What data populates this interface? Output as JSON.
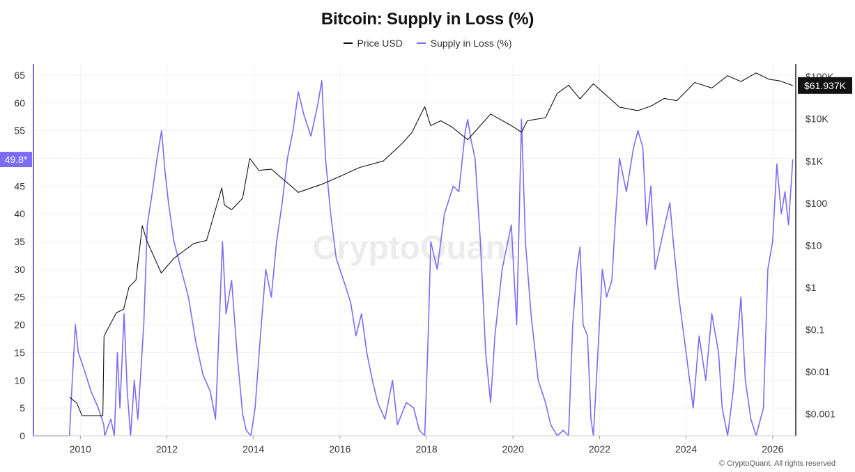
{
  "chart_data": {
    "type": "line",
    "title": "Bitcoin: Supply in Loss (%)",
    "legend_position": "top-center",
    "grid": true,
    "x_axis": {
      "type": "date",
      "range": [
        "2008-12-01",
        "2026-07-15"
      ],
      "tick_labels": [
        "2010",
        "2012",
        "2014",
        "2016",
        "2018",
        "2020",
        "2022",
        "2024",
        "2026"
      ]
    },
    "y_axis_left": {
      "range": [
        0,
        67
      ],
      "tick_labels": [
        "0",
        "5",
        "10",
        "15",
        "20",
        "25",
        "30",
        "35",
        "40",
        "45",
        "50",
        "55",
        "60",
        "65"
      ],
      "current_value_badge": "49.8*"
    },
    "y_axis_right": {
      "scale": "log",
      "range": [
        0.0003,
        200000
      ],
      "ticks": [
        0.001,
        0.01,
        0.1,
        1,
        10,
        100,
        1000,
        10000,
        100000
      ],
      "tick_labels": [
        "$0.001",
        "$0.01",
        "$0.1",
        "$1",
        "$10",
        "$100",
        "$1K",
        "$10K",
        "$100K"
      ],
      "current_value_badge": "$61.937K"
    },
    "series": [
      {
        "name": "Price USD",
        "color": "#111111",
        "axis": "right",
        "points": [
          [
            "2009-10-01",
            0.0025
          ],
          [
            "2009-12-01",
            0.0018
          ],
          [
            "2010-01-15",
            0.0009
          ],
          [
            "2010-07-10",
            0.0009
          ],
          [
            "2010-07-20",
            0.07
          ],
          [
            "2010-11-01",
            0.25
          ],
          [
            "2011-01-01",
            0.3
          ],
          [
            "2011-02-15",
            1.0
          ],
          [
            "2011-04-15",
            1.5
          ],
          [
            "2011-06-08",
            29
          ],
          [
            "2011-07-15",
            13
          ],
          [
            "2011-11-15",
            2.2
          ],
          [
            "2012-03-01",
            4.9
          ],
          [
            "2012-08-15",
            11
          ],
          [
            "2012-12-01",
            13
          ],
          [
            "2013-04-09",
            230
          ],
          [
            "2013-05-01",
            90
          ],
          [
            "2013-07-01",
            70
          ],
          [
            "2013-10-01",
            130
          ],
          [
            "2013-12-01",
            1150
          ],
          [
            "2014-02-15",
            600
          ],
          [
            "2014-06-01",
            640
          ],
          [
            "2015-01-15",
            180
          ],
          [
            "2015-08-01",
            280
          ],
          [
            "2016-01-01",
            430
          ],
          [
            "2016-06-15",
            700
          ],
          [
            "2017-01-01",
            1000
          ],
          [
            "2017-06-15",
            2700
          ],
          [
            "2017-09-01",
            4800
          ],
          [
            "2017-12-17",
            19500
          ],
          [
            "2018-02-05",
            6900
          ],
          [
            "2018-05-01",
            9000
          ],
          [
            "2018-08-01",
            6500
          ],
          [
            "2018-12-15",
            3200
          ],
          [
            "2019-06-26",
            13000
          ],
          [
            "2019-12-15",
            7000
          ],
          [
            "2020-03-13",
            4800
          ],
          [
            "2020-05-01",
            9000
          ],
          [
            "2020-10-01",
            10700
          ],
          [
            "2021-01-08",
            40000
          ],
          [
            "2021-04-14",
            63000
          ],
          [
            "2021-07-20",
            29800
          ],
          [
            "2021-11-10",
            68000
          ],
          [
            "2022-06-18",
            19000
          ],
          [
            "2022-11-21",
            15700
          ],
          [
            "2023-03-10",
            20000
          ],
          [
            "2023-07-01",
            30500
          ],
          [
            "2023-10-15",
            27000
          ],
          [
            "2024-03-14",
            73000
          ],
          [
            "2024-08-05",
            54000
          ],
          [
            "2024-12-17",
            106000
          ],
          [
            "2025-04-08",
            77000
          ],
          [
            "2025-08-14",
            123000
          ],
          [
            "2025-12-01",
            87000
          ],
          [
            "2026-03-01",
            80000
          ],
          [
            "2026-06-20",
            61937
          ]
        ]
      },
      {
        "name": "Supply in Loss (%)",
        "color": "#7b6cf2",
        "axis": "left",
        "points": [
          [
            "2008-12-01",
            0
          ],
          [
            "2009-10-01",
            0
          ],
          [
            "2009-10-20",
            8
          ],
          [
            "2009-11-20",
            20
          ],
          [
            "2009-12-15",
            15
          ],
          [
            "2010-02-01",
            12
          ],
          [
            "2010-04-01",
            8
          ],
          [
            "2010-06-01",
            5
          ],
          [
            "2010-07-18",
            2
          ],
          [
            "2010-07-25",
            0
          ],
          [
            "2010-09-15",
            3
          ],
          [
            "2010-10-15",
            0
          ],
          [
            "2010-11-10",
            15
          ],
          [
            "2010-12-01",
            5
          ],
          [
            "2011-01-05",
            22
          ],
          [
            "2011-02-01",
            8
          ],
          [
            "2011-03-01",
            0
          ],
          [
            "2011-04-01",
            10
          ],
          [
            "2011-05-01",
            3
          ],
          [
            "2011-06-20",
            20
          ],
          [
            "2011-07-20",
            38
          ],
          [
            "2011-09-01",
            44
          ],
          [
            "2011-10-10",
            50
          ],
          [
            "2011-11-18",
            55
          ],
          [
            "2011-12-15",
            48
          ],
          [
            "2012-01-15",
            42
          ],
          [
            "2012-03-01",
            35
          ],
          [
            "2012-05-01",
            30
          ],
          [
            "2012-07-01",
            25
          ],
          [
            "2012-09-01",
            17
          ],
          [
            "2012-11-01",
            11
          ],
          [
            "2013-01-01",
            8
          ],
          [
            "2013-02-15",
            3
          ],
          [
            "2013-04-15",
            35
          ],
          [
            "2013-05-15",
            22
          ],
          [
            "2013-07-01",
            28
          ],
          [
            "2013-08-15",
            15
          ],
          [
            "2013-10-01",
            4
          ],
          [
            "2013-11-01",
            1
          ],
          [
            "2013-12-10",
            0
          ],
          [
            "2014-01-15",
            5
          ],
          [
            "2014-03-01",
            18
          ],
          [
            "2014-04-15",
            30
          ],
          [
            "2014-06-01",
            25
          ],
          [
            "2014-07-15",
            35
          ],
          [
            "2014-09-01",
            42
          ],
          [
            "2014-10-15",
            50
          ],
          [
            "2014-12-01",
            55
          ],
          [
            "2015-01-15",
            62
          ],
          [
            "2015-03-01",
            58
          ],
          [
            "2015-05-01",
            54
          ],
          [
            "2015-07-01",
            60
          ],
          [
            "2015-08-01",
            64
          ],
          [
            "2015-09-01",
            50
          ],
          [
            "2015-10-15",
            40
          ],
          [
            "2015-12-01",
            32
          ],
          [
            "2016-02-01",
            28
          ],
          [
            "2016-04-01",
            24
          ],
          [
            "2016-05-15",
            18
          ],
          [
            "2016-07-01",
            22
          ],
          [
            "2016-08-15",
            15
          ],
          [
            "2016-10-01",
            10
          ],
          [
            "2016-11-15",
            6
          ],
          [
            "2017-01-15",
            3
          ],
          [
            "2017-03-20",
            10
          ],
          [
            "2017-05-01",
            2
          ],
          [
            "2017-07-15",
            6
          ],
          [
            "2017-09-15",
            5
          ],
          [
            "2017-11-01",
            1
          ],
          [
            "2017-12-17",
            0
          ],
          [
            "2018-01-15",
            18
          ],
          [
            "2018-02-06",
            35
          ],
          [
            "2018-04-01",
            30
          ],
          [
            "2018-06-01",
            40
          ],
          [
            "2018-08-15",
            45
          ],
          [
            "2018-10-01",
            44
          ],
          [
            "2018-11-25",
            55
          ],
          [
            "2018-12-15",
            57
          ],
          [
            "2019-01-15",
            53
          ],
          [
            "2019-02-15",
            50
          ],
          [
            "2019-04-01",
            35
          ],
          [
            "2019-05-15",
            15
          ],
          [
            "2019-06-26",
            6
          ],
          [
            "2019-08-01",
            18
          ],
          [
            "2019-10-01",
            30
          ],
          [
            "2019-12-18",
            38
          ],
          [
            "2020-02-01",
            20
          ],
          [
            "2020-03-13",
            57
          ],
          [
            "2020-04-15",
            35
          ],
          [
            "2020-06-01",
            22
          ],
          [
            "2020-08-01",
            10
          ],
          [
            "2020-10-01",
            6
          ],
          [
            "2020-11-15",
            2
          ],
          [
            "2021-01-08",
            0
          ],
          [
            "2021-03-01",
            1
          ],
          [
            "2021-04-14",
            0
          ],
          [
            "2021-05-19",
            20
          ],
          [
            "2021-06-22",
            30
          ],
          [
            "2021-07-20",
            34
          ],
          [
            "2021-08-15",
            20
          ],
          [
            "2021-09-21",
            18
          ],
          [
            "2021-10-20",
            3
          ],
          [
            "2021-11-10",
            0
          ],
          [
            "2022-01-24",
            30
          ],
          [
            "2022-03-01",
            25
          ],
          [
            "2022-04-15",
            28
          ],
          [
            "2022-05-12",
            38
          ],
          [
            "2022-06-18",
            50
          ],
          [
            "2022-08-15",
            44
          ],
          [
            "2022-10-15",
            52
          ],
          [
            "2022-11-21",
            55
          ],
          [
            "2023-01-01",
            52
          ],
          [
            "2023-02-01",
            38
          ],
          [
            "2023-03-10",
            45
          ],
          [
            "2023-04-15",
            30
          ],
          [
            "2023-06-15",
            36
          ],
          [
            "2023-08-17",
            42
          ],
          [
            "2023-09-15",
            35
          ],
          [
            "2023-11-01",
            25
          ],
          [
            "2024-01-01",
            15
          ],
          [
            "2024-03-01",
            5
          ],
          [
            "2024-04-20",
            18
          ],
          [
            "2024-06-15",
            10
          ],
          [
            "2024-08-05",
            22
          ],
          [
            "2024-10-01",
            15
          ],
          [
            "2024-11-01",
            5
          ],
          [
            "2024-12-17",
            0
          ],
          [
            "2025-02-01",
            8
          ],
          [
            "2025-04-08",
            25
          ],
          [
            "2025-05-15",
            10
          ],
          [
            "2025-07-01",
            3
          ],
          [
            "2025-08-14",
            0
          ],
          [
            "2025-10-15",
            5
          ],
          [
            "2025-11-21",
            30
          ],
          [
            "2026-01-01",
            35
          ],
          [
            "2026-02-05",
            49
          ],
          [
            "2026-03-15",
            40
          ],
          [
            "2026-04-15",
            44
          ],
          [
            "2026-05-15",
            38
          ],
          [
            "2026-06-20",
            49.8
          ]
        ]
      }
    ]
  },
  "watermark": "CryptoQuant",
  "footer": "© CryptoQuant. All rights reserved"
}
